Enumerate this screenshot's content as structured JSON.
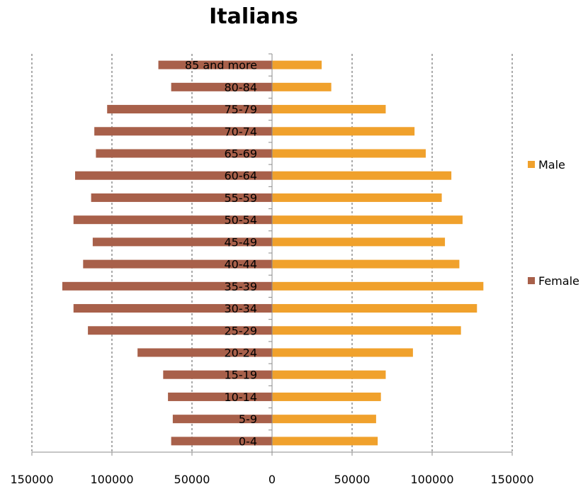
{
  "chart_data": {
    "type": "bar",
    "orientation": "horizontal",
    "title": "Italians",
    "categories": [
      "0-4",
      "5-9",
      "10-14",
      "15-19",
      "20-24",
      "25-29",
      "30-34",
      "35-39",
      "40-44",
      "45-49",
      "50-54",
      "55-59",
      "60-64",
      "65-69",
      "70-74",
      "75-79",
      "80-84",
      "85 and more"
    ],
    "series": [
      {
        "name": "Male",
        "color": "#F0A12C",
        "values": [
          66000,
          65000,
          68000,
          71000,
          88000,
          118000,
          128000,
          132000,
          117000,
          108000,
          119000,
          106000,
          112000,
          96000,
          89000,
          71000,
          37000,
          31000
        ]
      },
      {
        "name": "Female",
        "color": "#A8604A",
        "values": [
          -63000,
          -62000,
          -65000,
          -68000,
          -84000,
          -115000,
          -124000,
          -131000,
          -118000,
          -112000,
          -124000,
          -113000,
          -123000,
          -110000,
          -111000,
          -103000,
          -63000,
          -71000
        ]
      }
    ],
    "xlim": [
      -150000,
      150000
    ],
    "xticks": [
      -150000,
      -100000,
      -50000,
      0,
      50000,
      100000,
      150000
    ],
    "xtick_labels": [
      "150000",
      "100000",
      "50000",
      "0",
      "50000",
      "100000",
      "150000"
    ],
    "grid": "vertical-dashed",
    "legend": "right"
  }
}
